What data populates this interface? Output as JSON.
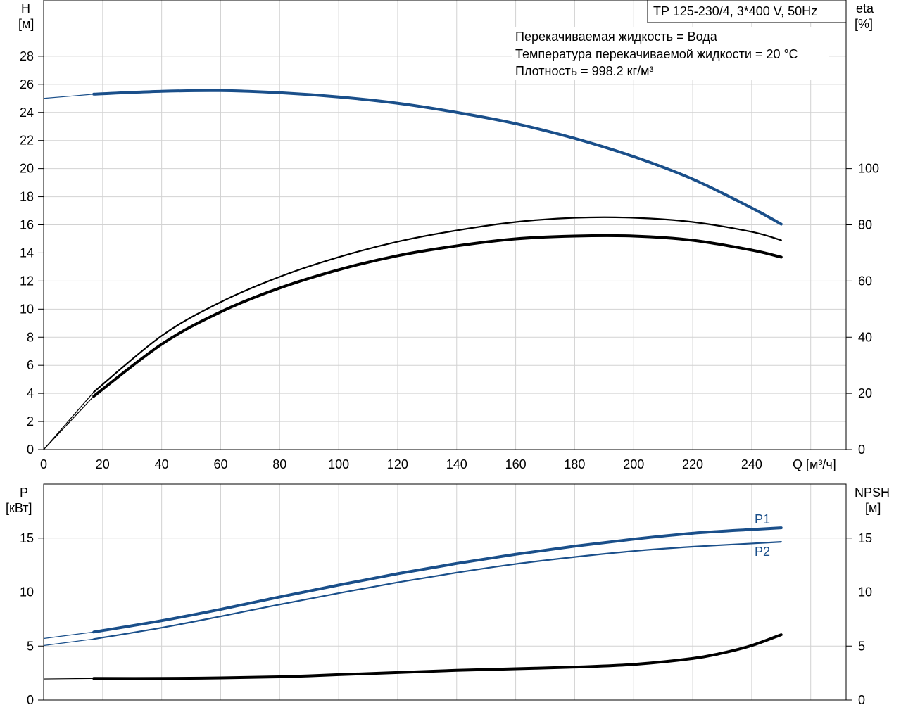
{
  "chart_data": [
    {
      "type": "line",
      "title": "TP 125-230/4, 3*400 V, 50Hz",
      "notes": [
        "Перекачиваемая жидкость = Вода",
        "Температура перекачиваемой жидкости = 20 °C",
        "Плотность = 998.2 кг/м³"
      ],
      "xlabel": "Q [м³/ч]",
      "xlim": [
        0,
        272
      ],
      "x_ticks": [
        "0",
        "20",
        "40",
        "60",
        "80",
        "100",
        "120",
        "140",
        "160",
        "180",
        "200",
        "220",
        "240"
      ],
      "y_left": {
        "label_top": "H",
        "label_unit": "[м]",
        "lim": [
          0,
          32
        ],
        "ticks": [
          "0",
          "2",
          "4",
          "6",
          "8",
          "10",
          "12",
          "14",
          "16",
          "18",
          "20",
          "22",
          "24",
          "26",
          "28"
        ]
      },
      "y_right": {
        "label_top": "eta",
        "label_unit": "[%]",
        "lim": [
          0,
          160
        ],
        "ticks": [
          "0",
          "20",
          "40",
          "60",
          "80",
          "100"
        ]
      },
      "grid": true,
      "series": [
        {
          "axis": "left",
          "color": "#1a4f8a",
          "style": "thick",
          "x": [
            0,
            17,
            40,
            60,
            80,
            100,
            120,
            140,
            160,
            180,
            200,
            220,
            240,
            250
          ],
          "y": [
            25.0,
            25.3,
            25.5,
            25.55,
            25.4,
            25.1,
            24.65,
            24.0,
            23.2,
            22.15,
            20.85,
            19.25,
            17.2,
            16.05
          ]
        },
        {
          "axis": "right",
          "color": "#000000",
          "style": "thin",
          "x": [
            0,
            17,
            40,
            60,
            80,
            100,
            120,
            140,
            160,
            180,
            200,
            220,
            240,
            250
          ],
          "y": [
            0,
            20.5,
            40.5,
            52.5,
            61.5,
            68.5,
            74.0,
            78.0,
            81.0,
            82.5,
            82.5,
            81.0,
            77.5,
            74.5
          ]
        },
        {
          "axis": "right",
          "color": "#000000",
          "style": "thick",
          "x": [
            0,
            17,
            40,
            60,
            80,
            100,
            120,
            140,
            160,
            180,
            200,
            220,
            240,
            250
          ],
          "y": [
            0,
            19.0,
            37.5,
            49.0,
            57.5,
            64.0,
            69.0,
            72.5,
            75.0,
            76.0,
            76.0,
            74.5,
            71.0,
            68.5
          ]
        }
      ]
    },
    {
      "type": "line",
      "xlim": [
        0,
        272
      ],
      "y_left": {
        "label_top": "P",
        "label_unit": "[кВт]",
        "lim": [
          0,
          20
        ],
        "ticks": [
          "0",
          "5",
          "10",
          "15"
        ]
      },
      "y_right": {
        "label_top": "NPSH",
        "label_unit": "[м]",
        "lim": [
          0,
          20
        ],
        "ticks": [
          "0",
          "5",
          "10",
          "15"
        ]
      },
      "grid": true,
      "series": [
        {
          "name": "P1",
          "axis": "left",
          "color": "#1a4f8a",
          "style": "thick",
          "x": [
            0,
            17,
            40,
            60,
            80,
            100,
            120,
            140,
            160,
            180,
            200,
            220,
            240,
            250
          ],
          "y": [
            5.7,
            6.3,
            7.35,
            8.4,
            9.55,
            10.65,
            11.7,
            12.65,
            13.5,
            14.25,
            14.9,
            15.45,
            15.8,
            15.95
          ]
        },
        {
          "name": "P2",
          "axis": "left",
          "color": "#1a4f8a",
          "style": "thin",
          "x": [
            0,
            17,
            40,
            60,
            80,
            100,
            120,
            140,
            160,
            180,
            200,
            220,
            240,
            250
          ],
          "y": [
            5.05,
            5.65,
            6.7,
            7.75,
            8.85,
            9.9,
            10.9,
            11.8,
            12.6,
            13.25,
            13.8,
            14.2,
            14.5,
            14.65
          ]
        },
        {
          "axis": "right",
          "color": "#000000",
          "style": "thick",
          "x": [
            0,
            17,
            40,
            60,
            80,
            100,
            120,
            140,
            160,
            180,
            200,
            220,
            230,
            240,
            250
          ],
          "y": [
            1.95,
            2.0,
            2.0,
            2.05,
            2.15,
            2.35,
            2.55,
            2.75,
            2.9,
            3.05,
            3.3,
            3.85,
            4.35,
            5.05,
            6.05
          ]
        }
      ]
    }
  ]
}
